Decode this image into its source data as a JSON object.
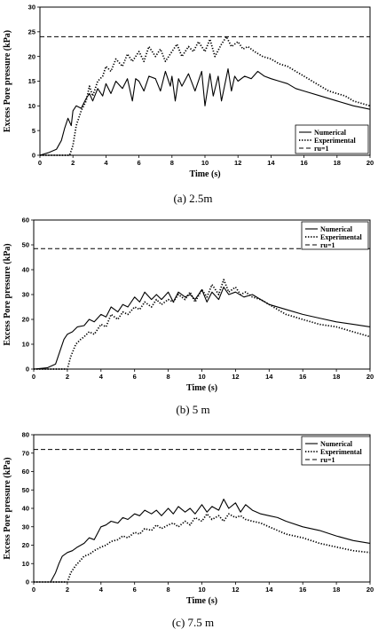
{
  "chart_data": [
    {
      "type": "line",
      "caption": "(a) 2.5m",
      "xlabel": "Time (s)",
      "ylabel": "Excess Pore pressure (kPa)",
      "xlim": [
        0,
        20
      ],
      "ylim": [
        0,
        30
      ],
      "xticks": [
        0,
        2,
        4,
        6,
        8,
        10,
        12,
        14,
        16,
        18,
        20
      ],
      "yticks": [
        0,
        5,
        10,
        15,
        20,
        25,
        30
      ],
      "legend_position": "bottom-right",
      "series": [
        {
          "name": "Numerical",
          "style": "solid",
          "x": [
            0,
            0.5,
            1.0,
            1.3,
            1.5,
            1.7,
            1.9,
            2.0,
            2.2,
            2.5,
            2.8,
            3.0,
            3.2,
            3.5,
            3.8,
            4.0,
            4.3,
            4.6,
            5.0,
            5.3,
            5.6,
            5.8,
            6.0,
            6.3,
            6.6,
            7.0,
            7.3,
            7.6,
            7.9,
            8.0,
            8.2,
            8.4,
            8.6,
            9.0,
            9.4,
            9.8,
            10.0,
            10.3,
            10.5,
            10.8,
            11.0,
            11.4,
            11.6,
            11.8,
            12.0,
            12.4,
            12.8,
            13.2,
            13.6,
            14.0,
            14.5,
            15.0,
            15.5,
            16.0,
            17.0,
            18.0,
            19.0,
            20.0
          ],
          "y": [
            0,
            0.5,
            1.2,
            3,
            5.5,
            7.5,
            6,
            9,
            10,
            9.5,
            11.5,
            12.5,
            11,
            13.5,
            12,
            14.5,
            12.5,
            15,
            13.5,
            15.5,
            11,
            15.5,
            15,
            13,
            16,
            15.5,
            13,
            17,
            14,
            16,
            11,
            15.5,
            14,
            16.5,
            13,
            17,
            10,
            16.5,
            12,
            16,
            11,
            17.5,
            13,
            16,
            15,
            16,
            15.5,
            17,
            16,
            15.5,
            15,
            14.5,
            13.5,
            13,
            12,
            11,
            10,
            9.3
          ]
        },
        {
          "name": "Experimental",
          "style": "dotted",
          "x": [
            0,
            1.8,
            2.0,
            2.2,
            2.5,
            2.8,
            3.0,
            3.2,
            3.5,
            3.8,
            4.0,
            4.3,
            4.6,
            5.0,
            5.3,
            5.6,
            6.0,
            6.3,
            6.6,
            7.0,
            7.3,
            7.6,
            8.0,
            8.3,
            8.6,
            9.0,
            9.3,
            9.6,
            10.0,
            10.3,
            10.6,
            11.0,
            11.3,
            11.6,
            12.0,
            12.3,
            12.6,
            13.0,
            13.5,
            14.0,
            14.5,
            15.0,
            15.5,
            16.0,
            16.5,
            17.0,
            17.5,
            18.0,
            18.5,
            19.0,
            19.5,
            20.0
          ],
          "y": [
            0,
            0,
            2,
            6,
            9,
            11,
            14,
            12,
            15,
            16,
            18,
            17,
            19.5,
            18,
            20.5,
            19,
            21,
            19,
            22,
            20,
            21.5,
            19,
            21,
            22.5,
            20,
            22,
            21,
            23,
            21,
            23.5,
            20,
            22.5,
            24,
            22,
            23,
            21.5,
            22,
            21,
            20,
            19.5,
            18.5,
            18,
            17,
            16,
            15,
            14,
            13,
            12.5,
            12,
            11,
            10.5,
            10
          ]
        },
        {
          "name": "ru=1",
          "style": "dashed",
          "x": [
            0,
            20
          ],
          "y": [
            24,
            24
          ]
        }
      ]
    },
    {
      "type": "line",
      "caption": "(b) 5 m",
      "xlabel": "Time (s)",
      "ylabel": "Excess Pore pressure (kPa)",
      "xlim": [
        0,
        20
      ],
      "ylim": [
        0,
        60
      ],
      "xticks": [
        0,
        2,
        4,
        6,
        8,
        10,
        12,
        14,
        16,
        18,
        20
      ],
      "yticks": [
        0,
        10,
        20,
        30,
        40,
        50,
        60
      ],
      "legend_position": "top-right",
      "series": [
        {
          "name": "Numerical",
          "style": "solid",
          "x": [
            0,
            0.8,
            1.3,
            1.6,
            1.8,
            2.0,
            2.3,
            2.6,
            3.0,
            3.3,
            3.6,
            4.0,
            4.3,
            4.6,
            5.0,
            5.3,
            5.6,
            6.0,
            6.3,
            6.6,
            7.0,
            7.3,
            7.6,
            8.0,
            8.3,
            8.6,
            9.0,
            9.3,
            9.6,
            10.0,
            10.3,
            10.6,
            11.0,
            11.3,
            11.6,
            12.0,
            12.5,
            13.0,
            13.5,
            14.0,
            15.0,
            16.0,
            17.0,
            18.0,
            19.0,
            20.0
          ],
          "y": [
            0,
            0.5,
            2,
            8,
            12,
            14,
            15,
            17,
            17.5,
            20,
            19,
            22,
            21,
            25,
            23,
            26,
            25,
            29,
            27,
            31,
            28,
            30,
            28,
            31,
            27,
            31,
            29,
            30,
            28,
            32,
            27,
            31,
            28,
            33,
            30,
            31,
            29,
            30,
            28,
            26,
            24,
            22,
            20.5,
            19,
            18,
            17
          ]
        },
        {
          "name": "Experimental",
          "style": "dotted",
          "x": [
            0,
            2.0,
            2.2,
            2.5,
            2.8,
            3.0,
            3.3,
            3.6,
            4.0,
            4.3,
            4.6,
            5.0,
            5.3,
            5.6,
            6.0,
            6.3,
            6.6,
            7.0,
            7.3,
            7.6,
            8.0,
            8.3,
            8.6,
            9.0,
            9.3,
            9.6,
            10.0,
            10.3,
            10.6,
            11.0,
            11.3,
            11.6,
            12.0,
            12.3,
            12.6,
            13.0,
            13.5,
            14.0,
            15.0,
            16.0,
            17.0,
            18.0,
            19.0,
            20.0
          ],
          "y": [
            0,
            0,
            5,
            10,
            12,
            13,
            15,
            14,
            18,
            17,
            22,
            20,
            23,
            22,
            25,
            24,
            27,
            25,
            28,
            26,
            28,
            27,
            30,
            28,
            31,
            27,
            32,
            29,
            34,
            30,
            36,
            31,
            33,
            30,
            31,
            29,
            28,
            26,
            22,
            20,
            18,
            17,
            15,
            13
          ]
        },
        {
          "name": "ru=1",
          "style": "dashed",
          "x": [
            0,
            20
          ],
          "y": [
            48.5,
            48.5
          ]
        }
      ]
    },
    {
      "type": "line",
      "caption": "(c) 7.5 m",
      "xlabel": "Time (s)",
      "ylabel": "Excess Pore pressure (kPa)",
      "xlim": [
        0,
        20
      ],
      "ylim": [
        0,
        80
      ],
      "xticks": [
        0,
        2,
        4,
        6,
        8,
        10,
        12,
        14,
        16,
        18,
        20
      ],
      "yticks": [
        0,
        10,
        20,
        30,
        40,
        50,
        60,
        70,
        80
      ],
      "legend_position": "top-right",
      "series": [
        {
          "name": "Numerical",
          "style": "solid",
          "x": [
            0,
            1.0,
            1.3,
            1.5,
            1.7,
            2.0,
            2.3,
            2.6,
            3.0,
            3.3,
            3.6,
            4.0,
            4.3,
            4.6,
            5.0,
            5.3,
            5.6,
            6.0,
            6.3,
            6.6,
            7.0,
            7.3,
            7.6,
            8.0,
            8.3,
            8.6,
            9.0,
            9.3,
            9.6,
            10.0,
            10.3,
            10.6,
            11.0,
            11.3,
            11.6,
            12.0,
            12.3,
            12.6,
            13.0,
            13.5,
            14.0,
            14.5,
            15.0,
            16.0,
            17.0,
            18.0,
            19.0,
            20.0
          ],
          "y": [
            0,
            0,
            5,
            10,
            14,
            16,
            17,
            19,
            21,
            24,
            23,
            30,
            31,
            33,
            32,
            35,
            34,
            37,
            36,
            39,
            37,
            39,
            36,
            40,
            37,
            41,
            38,
            40,
            37,
            42,
            38,
            41,
            39,
            45,
            40,
            43,
            38,
            42,
            39,
            37,
            36,
            35,
            33,
            30,
            28,
            25,
            22.5,
            21
          ]
        },
        {
          "name": "Experimental",
          "style": "dotted",
          "x": [
            0,
            2.0,
            2.2,
            2.5,
            2.8,
            3.0,
            3.3,
            3.6,
            4.0,
            4.3,
            4.6,
            5.0,
            5.3,
            5.6,
            6.0,
            6.3,
            6.6,
            7.0,
            7.3,
            7.6,
            8.0,
            8.3,
            8.6,
            9.0,
            9.3,
            9.6,
            10.0,
            10.3,
            10.6,
            11.0,
            11.3,
            11.6,
            12.0,
            12.3,
            12.6,
            13.0,
            13.5,
            14.0,
            14.5,
            15.0,
            16.0,
            17.0,
            18.0,
            19.0,
            20.0
          ],
          "y": [
            0,
            0,
            5,
            9,
            12,
            14,
            15,
            17,
            19,
            20,
            22,
            23,
            25,
            24,
            27,
            26,
            29,
            28,
            31,
            29,
            31,
            32,
            30,
            33,
            31,
            35,
            33,
            37,
            34,
            36,
            33,
            37,
            35,
            36,
            34,
            33,
            32,
            30,
            28,
            26,
            24,
            21,
            19,
            17,
            16
          ]
        },
        {
          "name": "ru=1",
          "style": "dashed",
          "x": [
            0,
            20
          ],
          "y": [
            72,
            72
          ]
        }
      ]
    }
  ]
}
